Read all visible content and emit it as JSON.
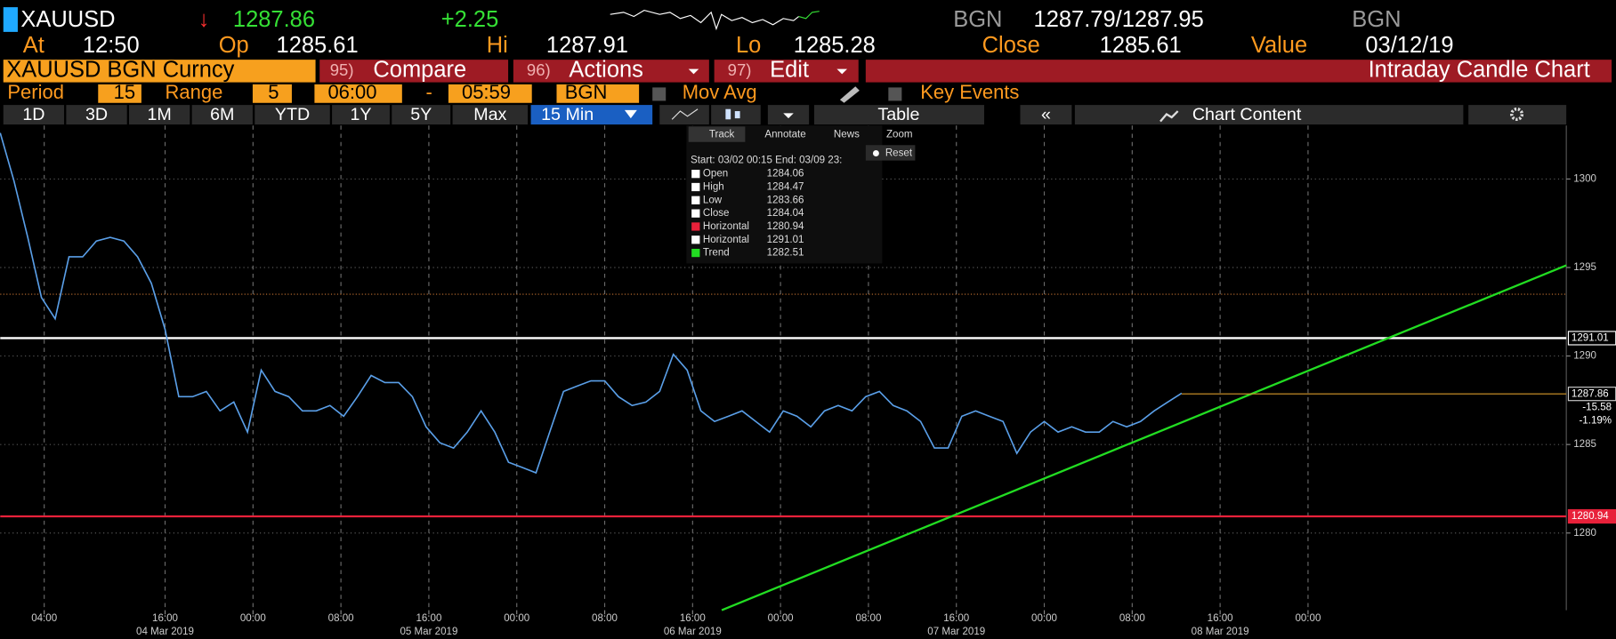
{
  "header": {
    "symbol": "XAUUSD",
    "direction": "↓",
    "last": 1287.86,
    "change": "+2.25",
    "bid_source": "BGN",
    "bid_ask": "1287.79/1287.95",
    "ask_source": "BGN"
  },
  "quote": {
    "at_label": "At",
    "at": "12:50",
    "open_label": "Op",
    "open": 1285.61,
    "high_label": "Hi",
    "high": 1287.91,
    "low_label": "Lo",
    "low": 1285.28,
    "close_label": "Close",
    "close": 1285.61,
    "value_label": "Value",
    "value": "03/12/19"
  },
  "toolbar": {
    "security": "XAUUSD BGN Curncy",
    "compare_num": "95)",
    "compare": "Compare",
    "actions_num": "96)",
    "actions": "Actions",
    "edit_num": "97)",
    "edit": "Edit",
    "chart_name": "Intraday Candle Chart"
  },
  "settings": {
    "period_label": "Period",
    "period": 15,
    "range_label": "Range",
    "range": 5,
    "start": "06:00",
    "dash": "-",
    "end": "05:59",
    "source": "BGN",
    "mov_avg": "Mov Avg",
    "key_events": "Key Events"
  },
  "buttons": [
    "1D",
    "3D",
    "1M",
    "6M",
    "YTD",
    "1Y",
    "5Y",
    "Max"
  ],
  "frequency": "15 Min",
  "table": "Table",
  "chart_content": "Chart Content",
  "popup": {
    "tools": [
      "Track",
      "Annotate",
      "News",
      "Zoom"
    ],
    "reset": "Reset",
    "range": "Start: 03/02 00:15 End: 03/09 23:",
    "rows": [
      {
        "name": "Open",
        "color": "#ffffff",
        "value": 1284.06
      },
      {
        "name": "High",
        "color": "#ffffff",
        "value": 1284.47
      },
      {
        "name": "Low",
        "color": "#ffffff",
        "value": 1283.66
      },
      {
        "name": "Close",
        "color": "#ffffff",
        "value": 1284.04
      },
      {
        "name": "Horizontal",
        "color": "#e8213a",
        "value": 1280.94
      },
      {
        "name": "Horizontal",
        "color": "#ffffff",
        "value": 1291.01
      },
      {
        "name": "Trend",
        "color": "#22dd22",
        "value": 1282.51
      }
    ]
  },
  "chart_data": {
    "type": "line",
    "x": [
      0,
      5,
      10,
      15,
      20,
      25,
      30,
      35,
      40,
      45,
      50,
      55,
      60,
      65,
      70,
      75,
      80,
      85,
      90,
      95,
      100,
      105,
      110,
      115,
      120,
      125,
      130,
      135,
      140,
      145,
      150,
      155,
      160,
      165,
      170,
      175,
      180,
      185,
      190,
      195,
      200,
      205,
      210,
      215,
      220,
      225,
      230,
      235,
      240,
      245,
      250,
      255,
      260,
      265,
      270,
      275,
      280,
      285,
      290,
      295,
      300,
      305,
      310,
      315,
      320,
      325,
      330,
      335,
      340,
      345,
      350,
      355,
      360,
      365,
      370,
      375,
      380,
      385,
      390,
      395,
      400,
      405,
      410,
      415,
      420,
      425,
      430
    ],
    "series": [
      {
        "color": "#5a9fe8",
        "values": [
          1302.6,
          1299.9,
          1296.7,
          1293.3,
          1292.1,
          1295.6,
          1295.6,
          1296.5,
          1296.7,
          1296.5,
          1295.6,
          1294.1,
          1291.5,
          1287.7,
          1287.7,
          1288.0,
          1286.9,
          1287.4,
          1285.7,
          1289.2,
          1288.0,
          1287.7,
          1286.9,
          1286.9,
          1287.2,
          1286.6,
          1287.7,
          1288.9,
          1288.5,
          1288.5,
          1287.7,
          1286.0,
          1285.1,
          1284.8,
          1285.7,
          1286.9,
          1285.7,
          1284.0,
          1283.7,
          1283.4,
          1285.7,
          1288.0,
          1288.3,
          1288.6,
          1288.6,
          1287.7,
          1287.2,
          1287.4,
          1288.0,
          1290.1,
          1289.2,
          1286.9,
          1286.3,
          1286.6,
          1286.9,
          1286.3,
          1285.7,
          1286.9,
          1286.6,
          1286.0,
          1286.9,
          1287.2,
          1286.9,
          1287.7,
          1288.0,
          1287.2,
          1286.9,
          1286.3,
          1284.8,
          1284.8,
          1286.6,
          1286.9,
          1286.6,
          1286.3,
          1284.5,
          1285.7,
          1286.3,
          1285.7,
          1286.0,
          1285.7,
          1285.7,
          1286.3,
          1286.0,
          1286.3,
          1286.9,
          1287.4,
          1287.9
        ]
      }
    ],
    "hlines": [
      {
        "value": 1291.01,
        "color": "#ffffff"
      },
      {
        "value": 1280.94,
        "color": "#e8213a"
      },
      {
        "value": 1293.49,
        "color": "#c87533"
      }
    ],
    "trend": {
      "x": [
        262.6,
        570
      ],
      "values": [
        1275.64,
        1295.12
      ],
      "color": "#22dd22"
    },
    "last_price": {
      "value": 1287.86,
      "change": -15.58,
      "change_pct": "-1.19%",
      "color": "#d99a2a"
    },
    "xlim": [
      0,
      570
    ],
    "ylim": [
      1275.64,
      1303.02
    ],
    "yticks": [
      1280,
      1285,
      1290,
      1295,
      1300
    ],
    "xticks": [
      {
        "value": 16,
        "label": "04:00"
      },
      {
        "value": 60,
        "label": "16:00"
      },
      {
        "value": 92,
        "label": "00:00"
      },
      {
        "value": 124,
        "label": "08:00"
      },
      {
        "value": 156,
        "label": "16:00"
      },
      {
        "value": 188,
        "label": "00:00"
      },
      {
        "value": 220,
        "label": "08:00"
      },
      {
        "value": 252,
        "label": "16:00"
      },
      {
        "value": 284,
        "label": "00:00"
      },
      {
        "value": 316,
        "label": "08:00"
      },
      {
        "value": 348,
        "label": "16:00"
      },
      {
        "value": 380,
        "label": "00:00"
      },
      {
        "value": 412,
        "label": "08:00"
      },
      {
        "value": 444,
        "label": "16:00"
      },
      {
        "value": 476,
        "label": "00:00"
      }
    ],
    "xdates": [
      {
        "value": 60,
        "label": "04 Mar 2019"
      },
      {
        "value": 156,
        "label": "05 Mar 2019"
      },
      {
        "value": 252,
        "label": "06 Mar 2019"
      },
      {
        "value": 348,
        "label": "07 Mar 2019"
      },
      {
        "value": 444,
        "label": "08 Mar 2019"
      }
    ],
    "grid": true
  }
}
